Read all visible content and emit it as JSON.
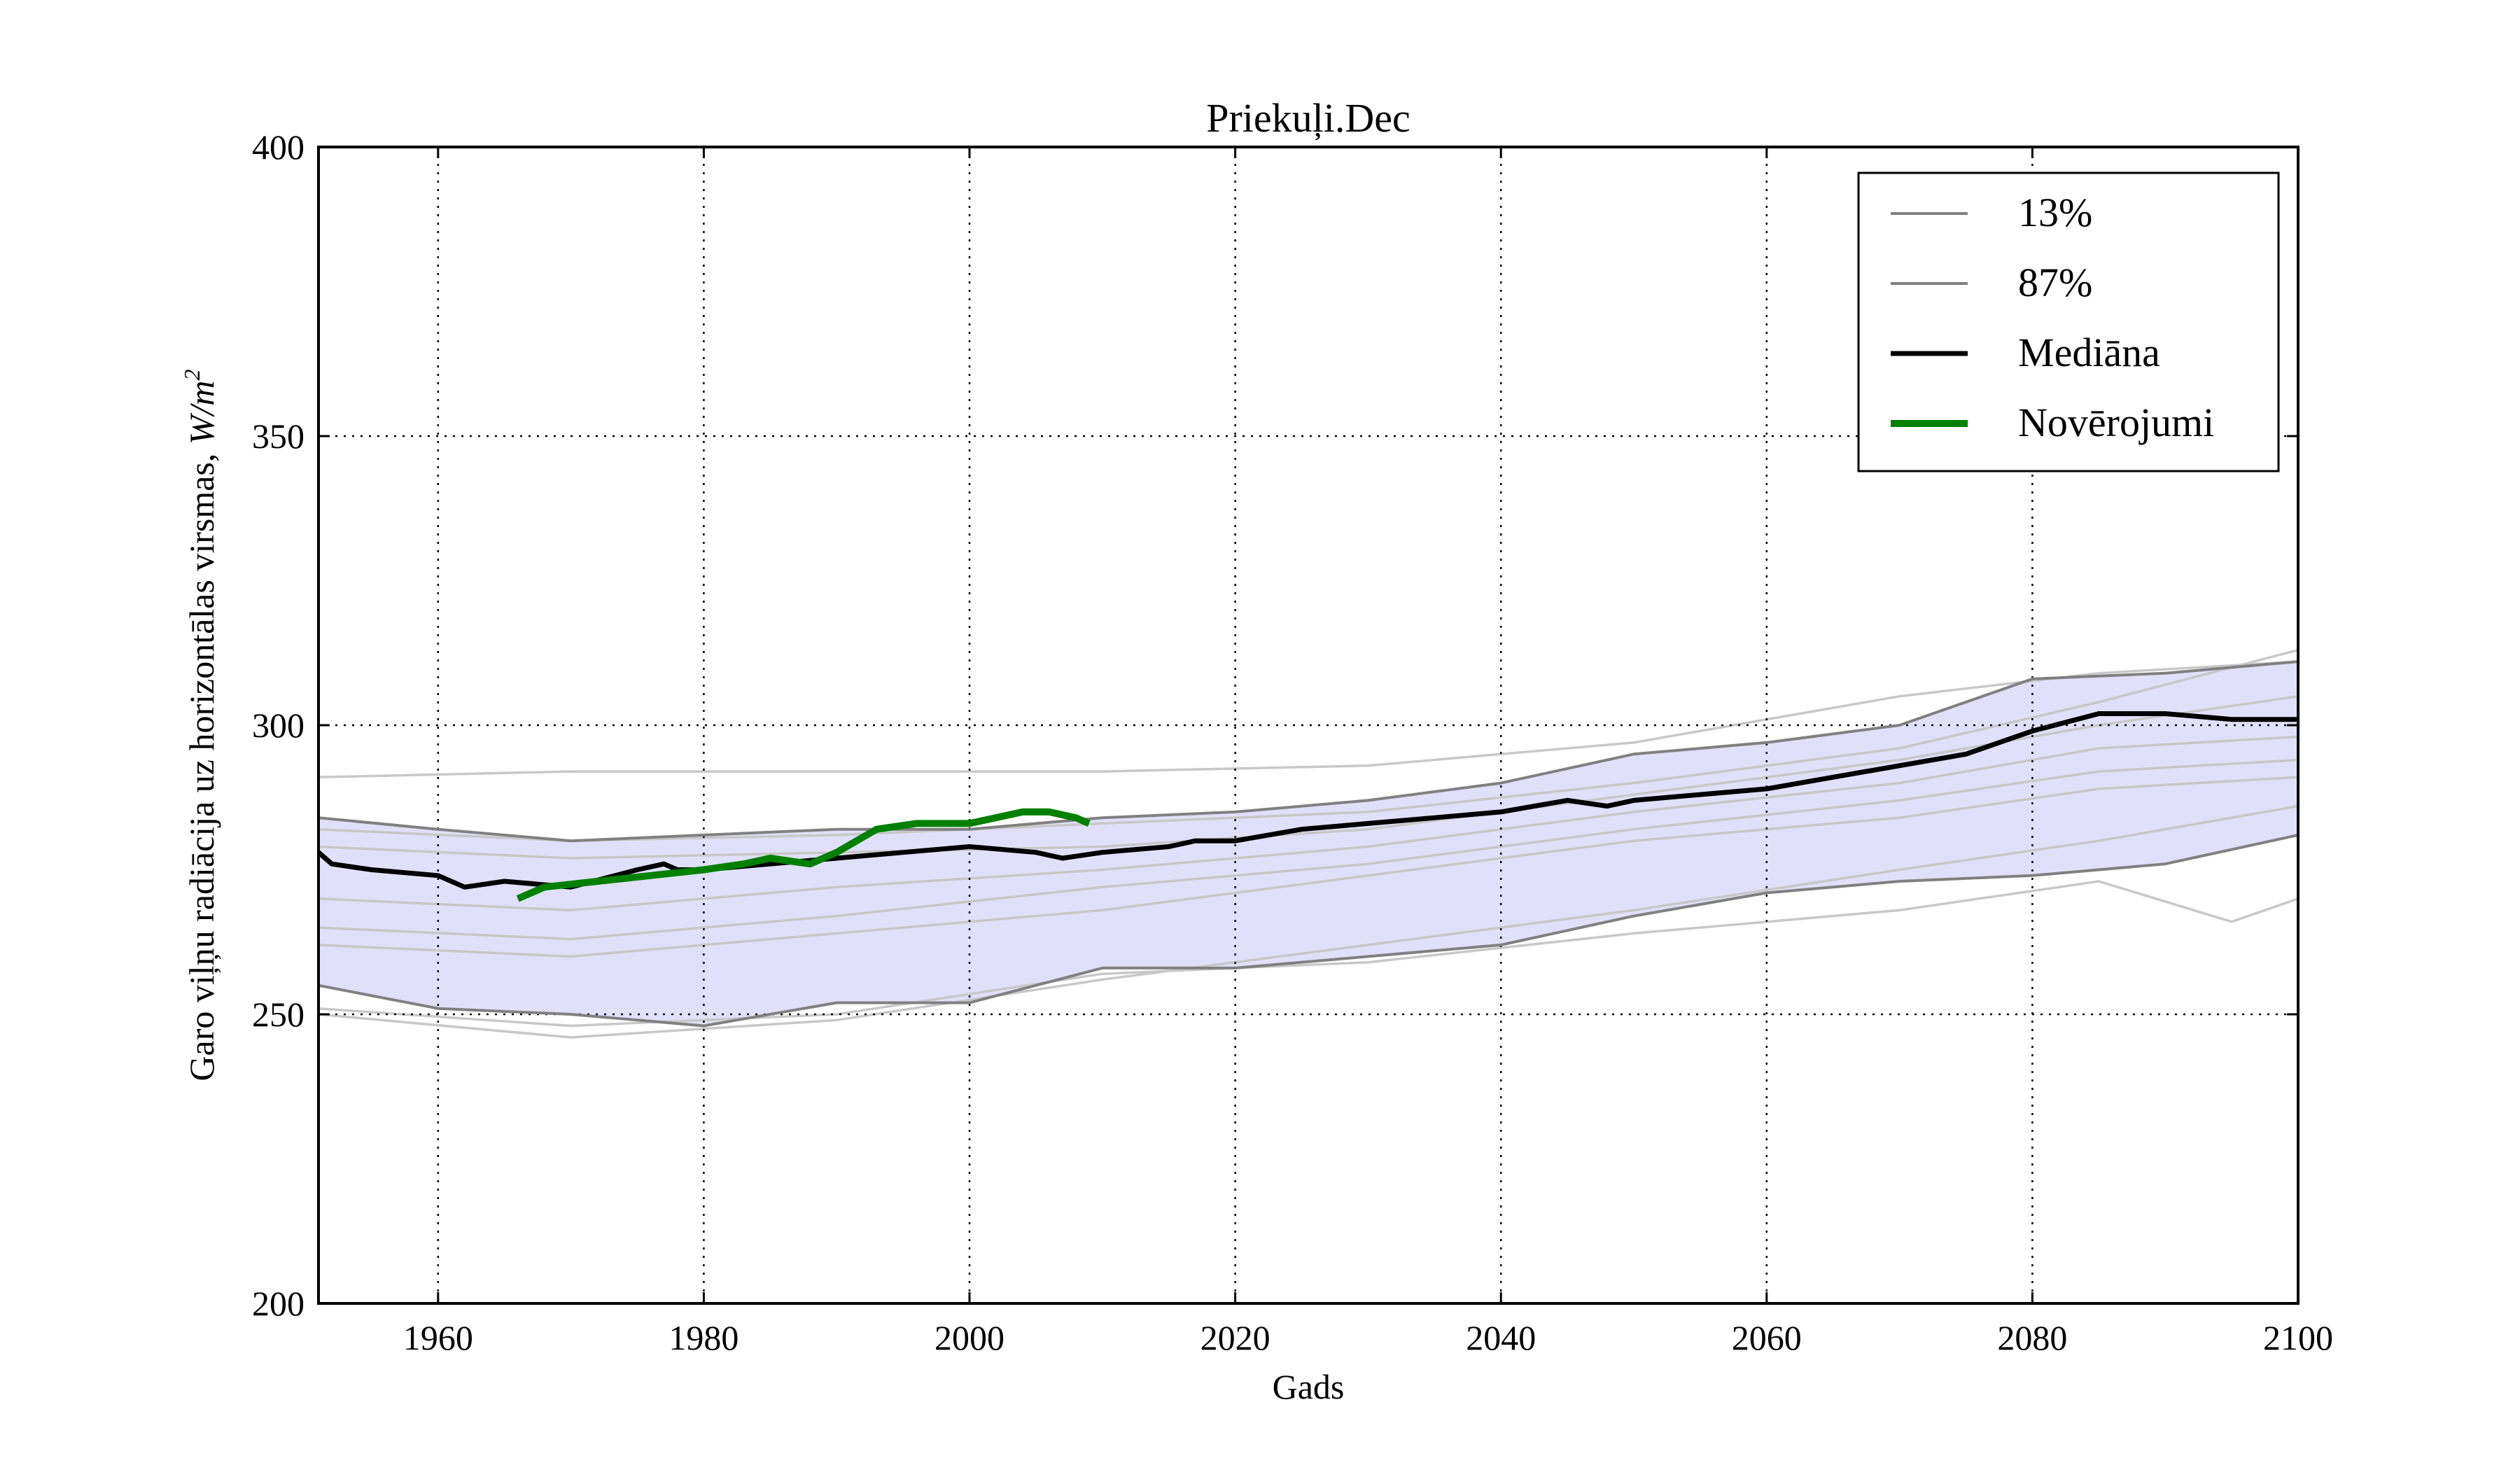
{
  "chart_data": {
    "type": "line",
    "title": "Priekuļi.Dec",
    "xlabel": "Gads",
    "ylabel": "Garo viļņu radiācija uz horizontālas virsmas, W/m²",
    "ylabel_text": "Garo viļņu radiācija uz horizontālas virsmas, ",
    "ylabel_unit_base": "W/m",
    "ylabel_unit_exp": "2",
    "xlim": [
      1951,
      2100
    ],
    "ylim": [
      200,
      400
    ],
    "xticks": [
      1960,
      1980,
      2000,
      2020,
      2040,
      2060,
      2080,
      2100
    ],
    "yticks": [
      200,
      250,
      300,
      350,
      400
    ],
    "grid": true,
    "legend_position": "top-right",
    "legend": [
      {
        "label": "13%",
        "color": "#808080",
        "style": "thin"
      },
      {
        "label": "87%",
        "color": "#808080",
        "style": "thin"
      },
      {
        "label": "Mediāna",
        "color": "#000000",
        "style": "thick"
      },
      {
        "label": "Novērojumi",
        "color": "#008000",
        "style": "thickest"
      }
    ],
    "band": {
      "color": "#e0e0fa",
      "x": [
        1951,
        1960,
        1970,
        1980,
        1990,
        2000,
        2010,
        2020,
        2030,
        2040,
        2050,
        2060,
        2070,
        2080,
        2090,
        2100
      ],
      "lower": [
        255,
        251,
        250,
        248,
        252,
        252,
        258,
        258,
        260,
        262,
        267,
        271,
        273,
        274,
        276,
        281
      ],
      "upper": [
        284,
        282,
        280,
        281,
        282,
        282,
        284,
        285,
        287,
        290,
        295,
        297,
        300,
        308,
        309,
        311
      ]
    },
    "series": [
      {
        "name": "13%",
        "color": "#808080",
        "x": [
          1951,
          1960,
          1970,
          1980,
          1990,
          2000,
          2010,
          2020,
          2030,
          2040,
          2050,
          2060,
          2070,
          2080,
          2090,
          2100
        ],
        "values": [
          255,
          251,
          250,
          248,
          252,
          252,
          258,
          258,
          260,
          262,
          267,
          271,
          273,
          274,
          276,
          281
        ]
      },
      {
        "name": "87%",
        "color": "#808080",
        "x": [
          1951,
          1960,
          1970,
          1980,
          1990,
          2000,
          2010,
          2020,
          2030,
          2040,
          2050,
          2060,
          2070,
          2080,
          2090,
          2100
        ],
        "values": [
          284,
          282,
          280,
          281,
          282,
          282,
          284,
          285,
          287,
          290,
          295,
          297,
          300,
          308,
          309,
          311
        ]
      },
      {
        "name": "Mediāna",
        "color": "#000000",
        "x": [
          1951,
          1952,
          1955,
          1960,
          1962,
          1965,
          1970,
          1975,
          1977,
          1978,
          1980,
          1985,
          1990,
          1995,
          2000,
          2005,
          2007,
          2010,
          2015,
          2017,
          2020,
          2025,
          2030,
          2035,
          2040,
          2045,
          2048,
          2050,
          2055,
          2060,
          2065,
          2070,
          2075,
          2080,
          2085,
          2090,
          2095,
          2100
        ],
        "values": [
          278,
          276,
          275,
          274,
          272,
          273,
          272,
          275,
          276,
          275,
          275,
          276,
          277,
          278,
          279,
          278,
          277,
          278,
          279,
          280,
          280,
          282,
          283,
          284,
          285,
          287,
          286,
          287,
          288,
          289,
          291,
          293,
          295,
          299,
          302,
          302,
          301,
          301
        ]
      },
      {
        "name": "Novērojumi",
        "color": "#008000",
        "x": [
          1966,
          1968,
          1972,
          1976,
          1980,
          1983,
          1985,
          1988,
          1990,
          1993,
          1996,
          2000,
          2004,
          2006,
          2008,
          2009
        ],
        "values": [
          270,
          272,
          273,
          274,
          275,
          276,
          277,
          276,
          278,
          282,
          283,
          283,
          285,
          285,
          284,
          283
        ]
      }
    ],
    "ensemble": {
      "color": "#c8c8c8",
      "members": [
        {
          "x": [
            1951,
            1970,
            1990,
            2010,
            2030,
            2050,
            2070,
            2085,
            2100
          ],
          "values": [
            291,
            292,
            292,
            292,
            293,
            297,
            305,
            309,
            311
          ]
        },
        {
          "x": [
            1951,
            1970,
            1990,
            2010,
            2030,
            2050,
            2070,
            2085,
            2100
          ],
          "values": [
            282,
            280,
            281,
            283,
            285,
            290,
            296,
            304,
            313
          ]
        },
        {
          "x": [
            1951,
            1970,
            1990,
            2010,
            2030,
            2050,
            2070,
            2085,
            2100
          ],
          "values": [
            279,
            277,
            278,
            279,
            282,
            288,
            294,
            300,
            305
          ]
        },
        {
          "x": [
            1951,
            1970,
            1990,
            2010,
            2030,
            2050,
            2070,
            2085,
            2100
          ],
          "values": [
            270,
            268,
            272,
            275,
            279,
            285,
            290,
            296,
            298
          ]
        },
        {
          "x": [
            1951,
            1970,
            1990,
            2010,
            2030,
            2050,
            2070,
            2085,
            2100
          ],
          "values": [
            265,
            263,
            267,
            272,
            276,
            282,
            287,
            292,
            294
          ]
        },
        {
          "x": [
            1951,
            1970,
            1990,
            2010,
            2030,
            2050,
            2070,
            2085,
            2100
          ],
          "values": [
            262,
            260,
            264,
            268,
            274,
            280,
            284,
            289,
            291
          ]
        },
        {
          "x": [
            1951,
            1970,
            1990,
            2010,
            2030,
            2050,
            2070,
            2085,
            2100
          ],
          "values": [
            250,
            246,
            249,
            256,
            262,
            268,
            275,
            280,
            286
          ]
        },
        {
          "x": [
            1951,
            1970,
            1990,
            2010,
            2030,
            2050,
            2070,
            2085,
            2095,
            2100
          ],
          "values": [
            251,
            248,
            250,
            257,
            259,
            264,
            268,
            273,
            266,
            270
          ]
        }
      ]
    }
  }
}
